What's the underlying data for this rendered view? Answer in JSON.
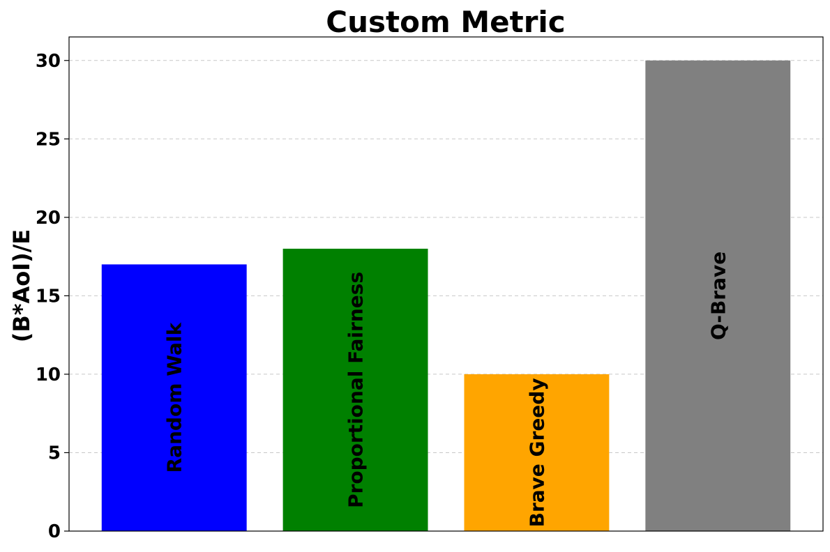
{
  "chart_data": {
    "type": "bar",
    "title": "Custom Metric",
    "xlabel": "",
    "ylabel": "(B*AoI)/E",
    "categories": [
      "Random Walk",
      "Proportional Fairness",
      "Brave Greedy",
      "Q-Brave"
    ],
    "values": [
      17,
      18,
      10,
      30
    ],
    "colors": [
      "#0000ff",
      "#008000",
      "#ffa500",
      "#808080"
    ],
    "ylim": [
      0,
      31.5
    ],
    "yticks": [
      0,
      5,
      10,
      15,
      20,
      25,
      30
    ],
    "grid": "y-dashed",
    "legend": "none",
    "bar_labels": "category names rotated vertically inside bars"
  }
}
